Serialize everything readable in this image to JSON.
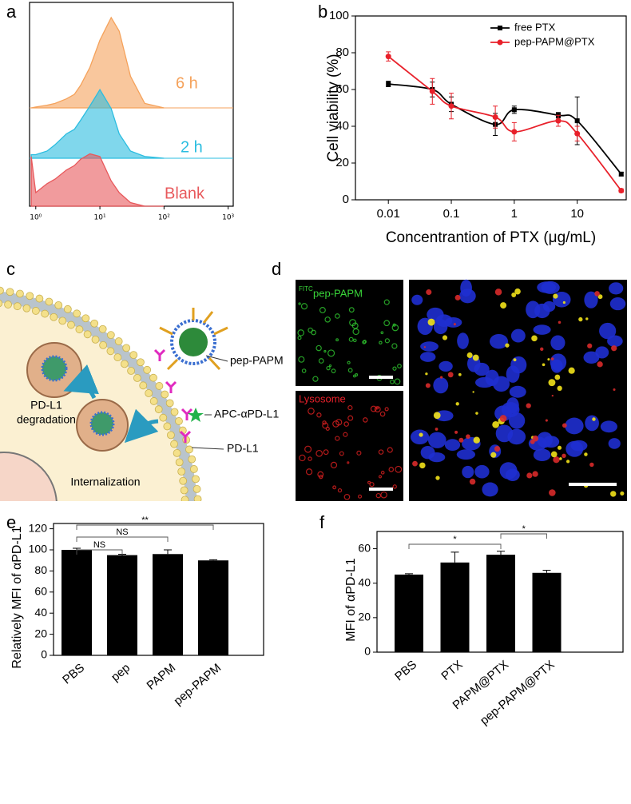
{
  "chart_data": [
    {
      "panel": "a",
      "type": "density",
      "xscale": "log",
      "x": [
        0.85,
        1,
        1.5,
        2,
        3,
        4,
        5,
        7,
        10,
        15,
        20,
        30,
        50,
        100
      ],
      "xlim": [
        0.8,
        1200
      ],
      "xticks": [
        {
          "value": 1,
          "label": "10⁰"
        },
        {
          "value": 10,
          "label": "10¹"
        },
        {
          "value": 100,
          "label": "10²"
        },
        {
          "value": 1000,
          "label": "10³"
        }
      ],
      "series": [
        {
          "name": "6 h",
          "color": "#f5a25b",
          "values": [
            0,
            1,
            3,
            5,
            10,
            15,
            25,
            45,
            75,
            100,
            85,
            35,
            5,
            0
          ]
        },
        {
          "name": "2 h",
          "color": "#2bbde0",
          "values": [
            4,
            4,
            8,
            15,
            27,
            32,
            42,
            58,
            76,
            55,
            27,
            8,
            2,
            0
          ]
        },
        {
          "name": "Blank",
          "color": "#e8595c",
          "values": [
            55,
            15,
            25,
            30,
            40,
            45,
            52,
            58,
            55,
            28,
            15,
            4,
            0,
            0
          ]
        }
      ]
    },
    {
      "panel": "b",
      "type": "line",
      "xscale": "log",
      "x": [
        0.01,
        0.05,
        0.1,
        0.5,
        1,
        5,
        10,
        50
      ],
      "xlim": [
        0.003,
        60
      ],
      "xticks": [
        0.01,
        0.1,
        1,
        10
      ],
      "ylim": [
        0,
        100
      ],
      "yticks": [
        0,
        20,
        40,
        60,
        80,
        100
      ],
      "x_label": "Concentrantion of PTX (μg/mL)",
      "y_label": "Cell viability (%)",
      "legend": "upper right",
      "series": [
        {
          "name": "free PTX",
          "color": "#000000",
          "marker": "square",
          "values": [
            63,
            60,
            52,
            41,
            49,
            46,
            43,
            14
          ],
          "errors": [
            1.5,
            4,
            4,
            6,
            2,
            1.5,
            13,
            1
          ]
        },
        {
          "name": "pep-PAPM@PTX",
          "color": "#e8202a",
          "marker": "circle",
          "values": [
            78,
            59,
            51,
            45,
            37,
            43,
            36,
            5
          ],
          "errors": [
            2.5,
            7,
            7,
            6,
            5,
            3,
            4,
            1
          ]
        }
      ]
    },
    {
      "panel": "e",
      "type": "bar",
      "color": "#000000",
      "categories": [
        "PBS",
        "pep",
        "PAPM",
        "pep-PAPM"
      ],
      "values": [
        100,
        95,
        96,
        90
      ],
      "errors": [
        1.5,
        0.8,
        4,
        0.6
      ],
      "ylim": [
        0,
        125
      ],
      "yticks": [
        0,
        20,
        40,
        60,
        80,
        100,
        120
      ],
      "y_label": "Relatively MFI of αPD-L1",
      "annotations": [
        "NS",
        "NS",
        "**"
      ]
    },
    {
      "panel": "f",
      "type": "bar",
      "color": "#000000",
      "categories": [
        "PBS",
        "PTX",
        "PAPM@PTX",
        "pep-PAPM@PTX"
      ],
      "values": [
        45,
        52,
        56.5,
        46
      ],
      "errors": [
        0.5,
        6,
        2,
        1.5
      ],
      "ylim": [
        0,
        70
      ],
      "yticks": [
        0,
        20,
        40,
        60
      ],
      "y_label": "MFI of αPD-L1",
      "annotations": [
        "*",
        "*"
      ]
    }
  ],
  "diagram": {
    "panel": "c",
    "labels": [
      "pep-PAPM",
      "APC-αPD-L1",
      "PD-L1",
      "Internalization"
    ],
    "degradation_label": [
      "PD-L1",
      "degradation"
    ]
  },
  "micrographs": {
    "panel": "d",
    "channels": [
      {
        "superscript": "FITC",
        "name": "pep-PAPM"
      },
      {
        "name": "Lysosome"
      }
    ]
  }
}
